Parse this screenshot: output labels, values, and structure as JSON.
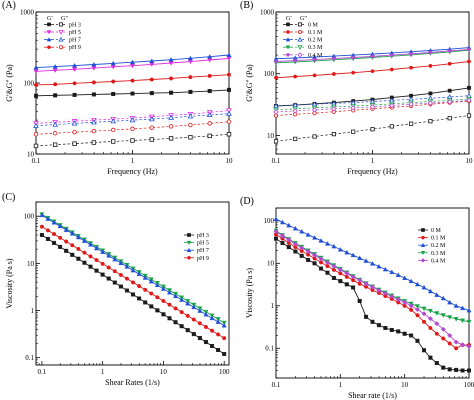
{
  "chart_data": [
    {
      "panel_label": "(A)",
      "type": "line",
      "xlabel": "Frequency (Hz)",
      "ylabel": "G'&G'' (Pa)",
      "xscale": "log",
      "yscale": "log",
      "xlim": [
        0.1,
        10
      ],
      "ylim": [
        10,
        1000
      ],
      "xticks": [
        {
          "v": 0.1,
          "label": "0.1"
        },
        {
          "v": 1,
          "label": "1"
        },
        {
          "v": 10,
          "label": "10"
        }
      ],
      "yticks": [
        {
          "v": 10,
          "label": "10"
        },
        {
          "v": 100,
          "label": "100"
        },
        {
          "v": 1000,
          "label": "1000"
        }
      ],
      "legend_headers": [
        "G'",
        "G''"
      ],
      "legend_cols": [
        [
          "pH 3",
          "pH 5",
          "pH 7",
          "pH 9"
        ],
        [
          "pH 3",
          "pH 5",
          "pH 7",
          "pH 9"
        ]
      ],
      "legend_position": "top-left",
      "x": [
        0.1,
        0.158,
        0.251,
        0.398,
        0.631,
        1,
        1.585,
        2.512,
        3.981,
        6.31,
        10
      ],
      "series": [
        {
          "name": "pH 3",
          "modulus": "G'",
          "color": "#1a1a1a",
          "marker": "square",
          "filled": true,
          "values": [
            66,
            67,
            68,
            69,
            70,
            71,
            72,
            73,
            75,
            77,
            80
          ]
        },
        {
          "name": "pH 5",
          "modulus": "G'",
          "color": "#e02be0",
          "marker": "triangle-down",
          "filled": true,
          "values": [
            146,
            151,
            156,
            162,
            169,
            175,
            183,
            191,
            200,
            211,
            222
          ]
        },
        {
          "name": "pH 7",
          "modulus": "G'",
          "color": "#1f4fd6",
          "marker": "triangle-up",
          "filled": true,
          "values": [
            165,
            170,
            176,
            182,
            189,
            196,
            204,
            213,
            223,
            235,
            248
          ]
        },
        {
          "name": "pH 9",
          "modulus": "G'",
          "color": "#e01818",
          "marker": "circle",
          "filled": true,
          "values": [
            94,
            96,
            99,
            102,
            105,
            108,
            112,
            116,
            121,
            126,
            131
          ]
        },
        {
          "name": "pH 3",
          "modulus": "G''",
          "color": "#1a1a1a",
          "marker": "square",
          "filled": false,
          "values": [
            13,
            13.5,
            14,
            14.5,
            15,
            15.5,
            16,
            16.6,
            17.2,
            18,
            19
          ]
        },
        {
          "name": "pH 5",
          "modulus": "G''",
          "color": "#e02be0",
          "marker": "triangle-down",
          "filled": false,
          "values": [
            27,
            28,
            29,
            30,
            31,
            32,
            33.5,
            35,
            36.5,
            38.5,
            41
          ]
        },
        {
          "name": "pH 7",
          "modulus": "G''",
          "color": "#1f4fd6",
          "marker": "triangle-up",
          "filled": false,
          "values": [
            25,
            26,
            27,
            28,
            29,
            30,
            31,
            32.5,
            34,
            35.5,
            37
          ]
        },
        {
          "name": "pH 9",
          "modulus": "G''",
          "color": "#e01818",
          "marker": "circle",
          "filled": false,
          "values": [
            19,
            19.6,
            20.3,
            21,
            21.8,
            22.6,
            23.5,
            24.5,
            25.6,
            27,
            28.5
          ]
        }
      ]
    },
    {
      "panel_label": "(B)",
      "type": "line",
      "xlabel": "Frequency (Hz)",
      "ylabel": "G'&G'' (Pa)",
      "xscale": "log",
      "yscale": "log",
      "xlim": [
        0.1,
        10
      ],
      "ylim": [
        5,
        1000
      ],
      "xticks": [
        {
          "v": 0.1,
          "label": "0.1"
        },
        {
          "v": 1,
          "label": "1"
        },
        {
          "v": 10,
          "label": "10"
        }
      ],
      "yticks": [
        {
          "v": 10,
          "label": "10"
        },
        {
          "v": 100,
          "label": "100"
        },
        {
          "v": 1000,
          "label": "1000"
        }
      ],
      "legend_headers": [
        "G'",
        "G''"
      ],
      "legend_cols": [
        [
          "0 M",
          "0.1 M",
          "0.2 M",
          "0.3 M",
          "0.4 M"
        ],
        [
          "0 M",
          "0.1 M",
          "0.2 M",
          "0.3 M",
          "0.4 M"
        ]
      ],
      "legend_position": "top-left",
      "x": [
        0.1,
        0.158,
        0.251,
        0.398,
        0.631,
        1,
        1.585,
        2.512,
        3.981,
        6.31,
        10
      ],
      "series": [
        {
          "name": "0 M",
          "modulus": "G'",
          "color": "#1a1a1a",
          "marker": "square",
          "filled": true,
          "values": [
            30,
            31,
            32.5,
            34,
            36,
            38,
            41,
            44,
            48,
            53,
            59
          ]
        },
        {
          "name": "0.1 M",
          "modulus": "G'",
          "color": "#e01818",
          "marker": "circle",
          "filled": true,
          "values": [
            86,
            90,
            94,
            99,
            104,
            110,
            117,
            125,
            134,
            145,
            158
          ]
        },
        {
          "name": "0.2 M",
          "modulus": "G'",
          "color": "#1f4fd6",
          "marker": "triangle-up",
          "filled": true,
          "values": [
            175,
            180,
            186,
            193,
            200,
            208,
            217,
            227,
            238,
            250,
            265
          ]
        },
        {
          "name": "0.3 M",
          "modulus": "G'",
          "color": "#1aa34a",
          "marker": "triangle-down",
          "filled": true,
          "values": [
            150,
            155,
            161,
            168,
            175,
            183,
            192,
            202,
            213,
            226,
            240
          ]
        },
        {
          "name": "0.4 M",
          "modulus": "G'",
          "color": "#b44ad0",
          "marker": "diamond",
          "filled": true,
          "values": [
            158,
            163,
            169,
            176,
            183,
            191,
            200,
            210,
            221,
            234,
            248
          ]
        },
        {
          "name": "0 M",
          "modulus": "G''",
          "color": "#1a1a1a",
          "marker": "square",
          "filled": false,
          "values": [
            8,
            8.8,
            9.6,
            10.5,
            11.5,
            12.6,
            14,
            15.5,
            17,
            19,
            21
          ]
        },
        {
          "name": "0.1 M",
          "modulus": "G''",
          "color": "#e01818",
          "marker": "circle",
          "filled": false,
          "values": [
            21,
            22,
            23,
            24.2,
            25.5,
            27,
            28.5,
            30,
            32,
            34,
            36
          ]
        },
        {
          "name": "0.2 M",
          "modulus": "G''",
          "color": "#1f4fd6",
          "marker": "triangle-up",
          "filled": false,
          "values": [
            30,
            31,
            32,
            33,
            34,
            35.5,
            37,
            38.5,
            40,
            42,
            44
          ]
        },
        {
          "name": "0.3 M",
          "modulus": "G''",
          "color": "#1aa34a",
          "marker": "triangle-down",
          "filled": false,
          "values": [
            26,
            27,
            28,
            29,
            30,
            31,
            32.5,
            34,
            35.5,
            37,
            39
          ]
        },
        {
          "name": "0.4 M",
          "modulus": "G''",
          "color": "#b44ad0",
          "marker": "diamond",
          "filled": false,
          "values": [
            24,
            25,
            26,
            27,
            28,
            29,
            30.5,
            32,
            33.5,
            35,
            37
          ]
        }
      ]
    },
    {
      "panel_label": "(C)",
      "type": "line",
      "xlabel": "Shear Rates (1/s)",
      "ylabel": "Viscosity (Pa s)",
      "xscale": "log",
      "yscale": "log",
      "xlim": [
        0.08,
        120
      ],
      "ylim": [
        0.07,
        200
      ],
      "xticks": [
        {
          "v": 0.1,
          "label": "0.1"
        },
        {
          "v": 1,
          "label": "1"
        },
        {
          "v": 10,
          "label": "10"
        },
        {
          "v": 100,
          "label": "100"
        }
      ],
      "yticks": [
        {
          "v": 0.1,
          "label": "0.1"
        },
        {
          "v": 1,
          "label": "1"
        },
        {
          "v": 10,
          "label": "10"
        },
        {
          "v": 100,
          "label": "100"
        }
      ],
      "legend_cols": [
        [
          "pH 3",
          "pH 5",
          "pH 7",
          "pH 9"
        ]
      ],
      "legend_position": "top-right",
      "x_range": [
        0.1,
        100
      ],
      "n_points": 31,
      "series": [
        {
          "name": "pH 3",
          "color": "#1a1a1a",
          "marker": "square",
          "filled": true,
          "start": 40,
          "end": 0.12
        },
        {
          "name": "pH 5",
          "color": "#1aa34a",
          "marker": "triangle-down",
          "filled": true,
          "start": 110,
          "end": 0.55
        },
        {
          "name": "pH 7",
          "color": "#1f4fd6",
          "marker": "triangle-up",
          "filled": true,
          "start": 105,
          "end": 0.48
        },
        {
          "name": "pH 9",
          "color": "#e01818",
          "marker": "circle",
          "filled": true,
          "start": 60,
          "end": 0.26
        }
      ]
    },
    {
      "panel_label": "(D)",
      "type": "line",
      "xlabel": "Shear rate (1/s)",
      "ylabel": "Viscosity (Pa s)",
      "xscale": "log",
      "yscale": "log",
      "xlim": [
        0.1,
        100
      ],
      "ylim": [
        0.02,
        200
      ],
      "xticks": [
        {
          "v": 0.1,
          "label": "0.1"
        },
        {
          "v": 1,
          "label": "1"
        },
        {
          "v": 10,
          "label": "10"
        },
        {
          "v": 100,
          "label": "100"
        }
      ],
      "yticks": [
        {
          "v": 0.1,
          "label": "0.1"
        },
        {
          "v": 1,
          "label": "1"
        },
        {
          "v": 10,
          "label": "10"
        },
        {
          "v": 100,
          "label": "100"
        }
      ],
      "legend_cols": [
        [
          "0 M",
          "0.1 M",
          "0.2 M",
          "0.3 M",
          "0.4 M"
        ]
      ],
      "legend_position": "top-right",
      "x": [
        0.1,
        0.126,
        0.158,
        0.2,
        0.251,
        0.316,
        0.398,
        0.501,
        0.631,
        0.794,
        1,
        1.26,
        1.58,
        2,
        2.51,
        3.16,
        3.98,
        5.01,
        6.31,
        7.94,
        10,
        12.6,
        15.8,
        20,
        25.1,
        31.6,
        39.8,
        50.1,
        63.1,
        79.4,
        100
      ],
      "series": [
        {
          "name": "0 M",
          "color": "#1a1a1a",
          "marker": "square",
          "filled": true,
          "values": [
            38,
            30,
            24,
            19,
            15,
            12,
            10,
            7.5,
            6,
            4.5,
            3.8,
            3.2,
            2.7,
            1.3,
            0.55,
            0.42,
            0.35,
            0.3,
            0.27,
            0.25,
            0.22,
            0.2,
            0.15,
            0.09,
            0.06,
            0.045,
            0.035,
            0.032,
            0.031,
            0.03,
            0.03
          ]
        },
        {
          "name": "0.1 M",
          "color": "#e01818",
          "marker": "circle",
          "filled": true,
          "values": [
            48,
            38,
            30,
            24,
            19.5,
            16,
            13,
            10.5,
            8.6,
            7,
            5.8,
            4.8,
            4,
            3.3,
            2.8,
            2.35,
            2,
            1.7,
            1.45,
            1.2,
            1,
            0.8,
            0.6,
            0.42,
            0.3,
            0.22,
            0.17,
            0.13,
            0.1,
            0.12,
            0.12
          ]
        },
        {
          "name": "0.2 M",
          "color": "#1f4fd6",
          "marker": "triangle-up",
          "filled": true,
          "values": [
            110,
            92,
            78,
            66,
            56,
            47,
            40,
            34,
            29,
            25,
            21,
            18,
            15.5,
            13.3,
            11.4,
            9.8,
            8.4,
            7.2,
            6.2,
            5.3,
            4.5,
            3.8,
            3.2,
            2.7,
            2.2,
            1.8,
            1.5,
            1.2,
            1,
            0.88,
            0.78
          ]
        },
        {
          "name": "0.3 M",
          "color": "#1aa34a",
          "marker": "triangle-down",
          "filled": true,
          "values": [
            58,
            46,
            37,
            30,
            24.5,
            20,
            16.5,
            13.5,
            11,
            9,
            7.4,
            6.1,
            5,
            4.1,
            3.4,
            2.85,
            2.4,
            2.05,
            1.75,
            1.5,
            1.3,
            1.12,
            0.98,
            0.86,
            0.76,
            0.67,
            0.6,
            0.54,
            0.49,
            0.45,
            0.42
          ]
        },
        {
          "name": "0.4 M",
          "color": "#b44ad0",
          "marker": "diamond",
          "filled": true,
          "values": [
            56,
            44,
            35.5,
            28.5,
            23,
            19,
            15.5,
            12.7,
            10.4,
            8.5,
            7,
            5.8,
            4.8,
            4,
            3.3,
            2.75,
            2.3,
            1.95,
            1.65,
            1.4,
            1.2,
            1,
            0.82,
            0.65,
            0.5,
            0.38,
            0.28,
            0.2,
            0.14,
            0.12,
            0.11
          ]
        }
      ]
    }
  ]
}
